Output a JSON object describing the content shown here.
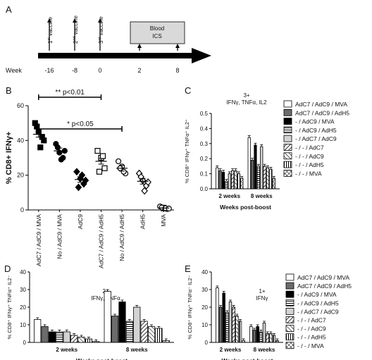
{
  "panel_labels": {
    "A": "A",
    "B": "B",
    "C": "C",
    "D": "D",
    "E": "E"
  },
  "timeline": {
    "week_label": "Week",
    "weeks": [
      "-16",
      "-8",
      "0",
      "2",
      "8"
    ],
    "vaccines": [
      {
        "num": "1",
        "sup": "st",
        "text": " vaccine"
      },
      {
        "num": "2",
        "sup": "nd",
        "text": " vaccine"
      },
      {
        "num": "3",
        "sup": "rd",
        "text": " vaccine"
      }
    ],
    "box_line1": "Blood",
    "box_line2": "ICS"
  },
  "colors": {
    "black": "#000000",
    "dark_gray": "#6b6b6b",
    "mid_gray": "#a0a0a0",
    "light_gray": "#d3d3d3"
  },
  "legend_entries": [
    "AdC7 / AdC9 / MVA",
    "AdC7 / AdC9 / AdH5",
    "- / AdC9 / MVA",
    "- / AdC9 / AdH5",
    "- / AdC7 / AdC9",
    "- / - / AdC7",
    "- / - / AdC9",
    "- / - / AdH5",
    "- / - / MVA"
  ],
  "chart_data": [
    {
      "panel": "B",
      "type": "scatter",
      "ylabel": "% CD8+ IFNγ+",
      "ylim": [
        0,
        60
      ],
      "yticks": [
        0,
        20,
        40,
        60
      ],
      "categories": [
        "AdC7 / AdC9 / MVA",
        "No / AdC9 / MVA",
        "AdC9",
        "AdC7 / AdC9 / AdH5",
        "No / AdC9 / AdH5",
        "AdH5",
        "MVA"
      ],
      "markers": [
        "filled-square",
        "filled-circle",
        "filled-diamond",
        "open-square",
        "open-circle",
        "open-diamond",
        "open-circle"
      ],
      "values": [
        [
          50,
          45,
          42,
          48,
          36,
          40
        ],
        [
          38,
          33,
          30,
          36,
          29,
          34
        ],
        [
          22,
          18,
          15,
          13,
          20,
          17
        ],
        [
          34,
          30,
          24,
          22,
          31
        ],
        [
          28,
          25,
          21,
          24,
          22
        ],
        [
          21,
          17,
          14,
          19,
          11,
          16
        ],
        [
          2,
          1,
          0.5,
          1.5,
          1,
          0.8
        ]
      ],
      "means": [
        43.5,
        34,
        17.5,
        28,
        24,
        16.5,
        1.1
      ],
      "annotations": [
        {
          "text": "** p<0.01",
          "from": 0,
          "to": 3
        },
        {
          "text": "* p<0.05",
          "from": 0,
          "to": 4
        }
      ]
    },
    {
      "panel": "C",
      "type": "bar",
      "title_line1": "3+",
      "title_line2": "IFNγ, TNFα, IL2",
      "ylabel": "% CD8⁺ IFNγ⁺ TNFα⁺ IL2⁺",
      "xlabel": "Weeks post-boost",
      "categories": [
        "2 weeks",
        "8 weeks"
      ],
      "ylim": [
        0,
        0.5
      ],
      "yticks": [
        "0.0",
        "0.1",
        "0.2",
        "0.3",
        "0.4",
        "0.5"
      ],
      "series_values": [
        [
          0.14,
          0.34
        ],
        [
          0.12,
          0.19
        ],
        [
          0.11,
          0.29
        ],
        [
          0.05,
          0.15
        ],
        [
          0.1,
          0.28
        ],
        [
          0.12,
          0.15
        ],
        [
          0.12,
          0.14
        ],
        [
          0.1,
          0.13
        ],
        [
          0.07,
          0.07
        ]
      ]
    },
    {
      "panel": "D",
      "type": "bar",
      "title_line1": "2+",
      "title_line2": "IFNγ, TNFα",
      "ylabel": "% CD8⁺ IFNγ⁺ TNFα⁺ IL2⁻",
      "xlabel": "Weeks post-boost",
      "categories": [
        "2 weeks",
        "8 weeks"
      ],
      "ylim": [
        0,
        40
      ],
      "yticks": [
        "0",
        "10",
        "20",
        "30",
        "40"
      ],
      "series_values": [
        [
          13,
          29
        ],
        [
          9,
          15
        ],
        [
          6,
          23
        ],
        [
          6,
          12
        ],
        [
          6,
          20
        ],
        [
          4,
          12
        ],
        [
          3,
          9
        ],
        [
          2,
          8
        ],
        [
          0.5,
          1
        ]
      ]
    },
    {
      "panel": "E",
      "type": "bar",
      "title_line1": "1+",
      "title_line2": "IFNγ",
      "ylabel": "% CD8⁺ IFNγ⁺ TNFα⁻ IL2⁻",
      "xlabel": "Weeks post-boost",
      "categories": [
        "2 weeks",
        "8 weeks"
      ],
      "ylim": [
        0,
        40
      ],
      "yticks": [
        "0",
        "10",
        "20",
        "30",
        "40"
      ],
      "series_values": [
        [
          31,
          9
        ],
        [
          20,
          7
        ],
        [
          28,
          9
        ],
        [
          17,
          6
        ],
        [
          23,
          11
        ],
        [
          20,
          5
        ],
        [
          15,
          5
        ],
        [
          12,
          4
        ],
        [
          1,
          1
        ]
      ]
    }
  ]
}
